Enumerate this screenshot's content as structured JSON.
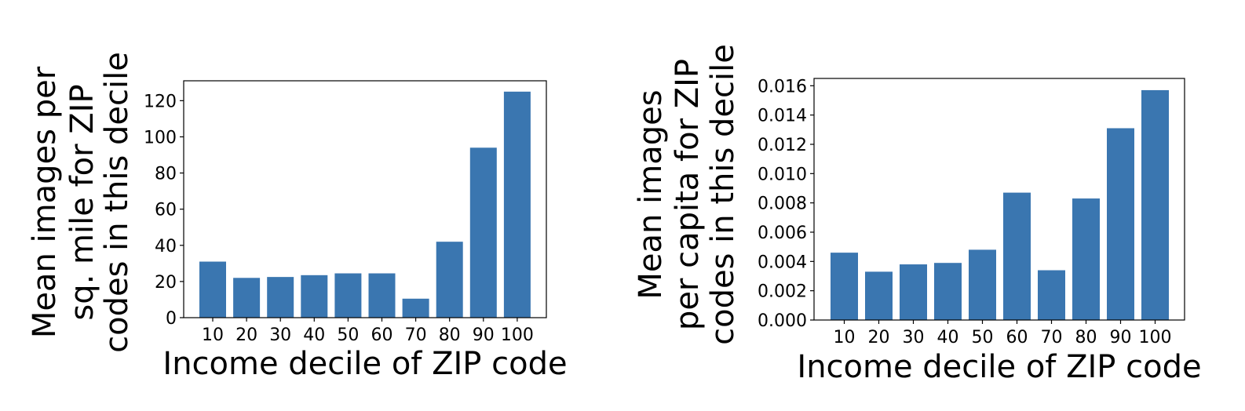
{
  "chart_data": [
    {
      "type": "bar",
      "categories": [
        "10",
        "20",
        "30",
        "40",
        "50",
        "60",
        "70",
        "80",
        "90",
        "100"
      ],
      "values": [
        31,
        22,
        22.5,
        23.5,
        24.5,
        24.5,
        10.5,
        42,
        94,
        125
      ],
      "xlabel": "Income decile of ZIP code",
      "ylabel": [
        "Mean images per",
        "sq. mile for ZIP",
        "codes in this decile"
      ],
      "ylim": [
        0,
        131
      ],
      "yticks": [
        0,
        20,
        40,
        60,
        80,
        100,
        120
      ],
      "ytick_labels": [
        "0",
        "20",
        "40",
        "60",
        "80",
        "100",
        "120"
      ],
      "bar_color": "#3a76b0",
      "grid": false
    },
    {
      "type": "bar",
      "categories": [
        "10",
        "20",
        "30",
        "40",
        "50",
        "60",
        "70",
        "80",
        "90",
        "100"
      ],
      "values": [
        0.0046,
        0.0033,
        0.0038,
        0.0039,
        0.0048,
        0.0087,
        0.0034,
        0.0083,
        0.0131,
        0.0157
      ],
      "xlabel": "Income decile of ZIP code",
      "ylabel": [
        "Mean images",
        "per capita for ZIP",
        "codes in this decile"
      ],
      "ylim": [
        0,
        0.0165
      ],
      "yticks": [
        0,
        0.002,
        0.004,
        0.006,
        0.008,
        0.01,
        0.012,
        0.014,
        0.016
      ],
      "ytick_labels": [
        "0.000",
        "0.002",
        "0.004",
        "0.006",
        "0.008",
        "0.010",
        "0.012",
        "0.014",
        "0.016"
      ],
      "bar_color": "#3a76b0",
      "grid": false
    }
  ]
}
